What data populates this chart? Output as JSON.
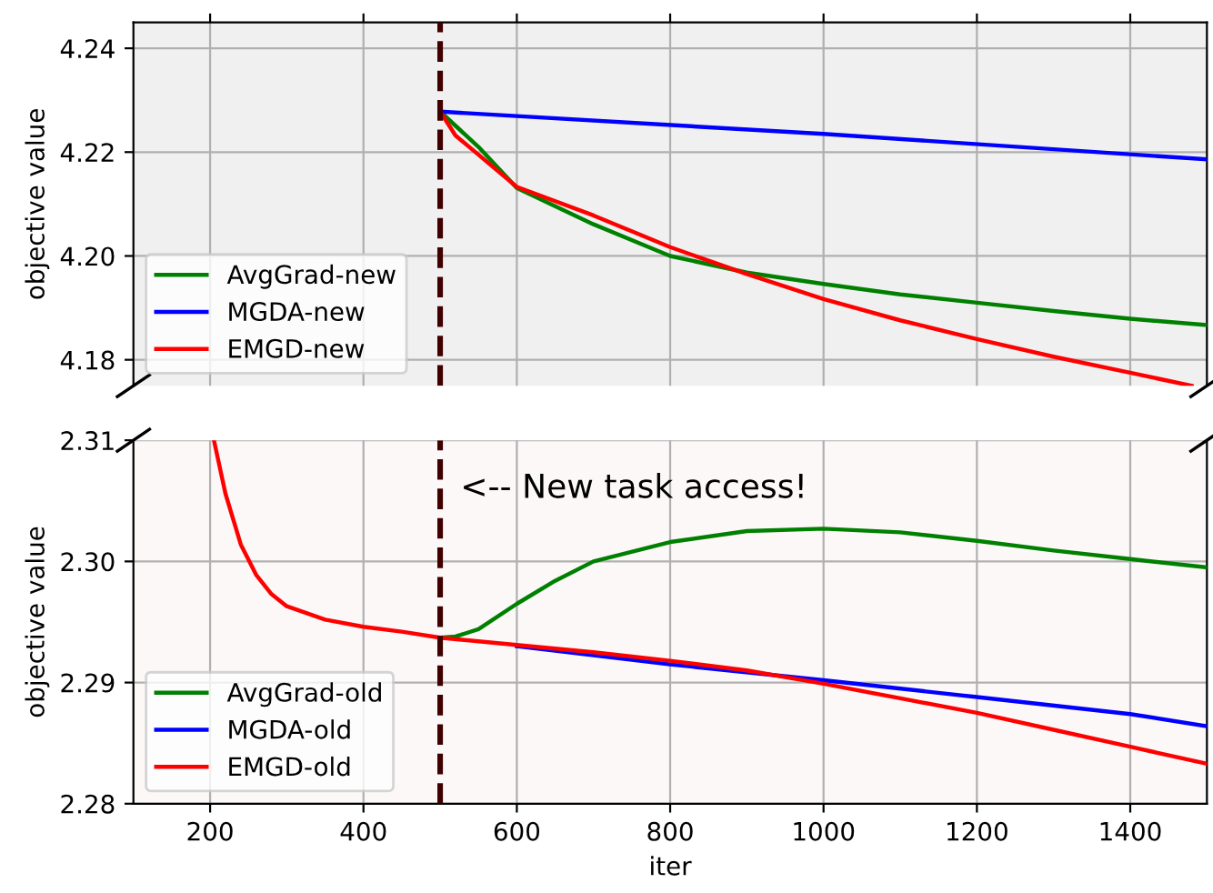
{
  "chart_data": [
    {
      "type": "line",
      "ylabel": "objective value",
      "xlim": [
        100,
        1500
      ],
      "ylim": [
        4.175,
        4.245
      ],
      "xticks": [
        {
          "value": 200,
          "label": null
        },
        {
          "value": 400,
          "label": null
        },
        {
          "value": 600,
          "label": null
        },
        {
          "value": 800,
          "label": null
        },
        {
          "value": 1000,
          "label": null
        },
        {
          "value": 1200,
          "label": null
        },
        {
          "value": 1400,
          "label": null
        }
      ],
      "yticks": [
        {
          "value": 4.18,
          "label": "4.18"
        },
        {
          "value": 4.2,
          "label": "4.20"
        },
        {
          "value": 4.22,
          "label": "4.22"
        },
        {
          "value": 4.24,
          "label": "4.24"
        }
      ],
      "tick_labels": "y",
      "grid": true,
      "legend": "bottom left",
      "line_style": "solid",
      "marker": "none",
      "ref_lines": [
        {
          "axis": "x",
          "value": 500,
          "color": "#400000",
          "line_style": "dashed"
        }
      ],
      "series": [
        {
          "name": "AvgGrad-new",
          "color": "#008000",
          "x": [
            500,
            550,
            600,
            700,
            800,
            900,
            1000,
            1100,
            1200,
            1300,
            1400,
            1500
          ],
          "values": [
            4.2278,
            4.221,
            4.2131,
            4.2061,
            4.2,
            4.1968,
            4.1946,
            4.1926,
            4.191,
            4.1894,
            4.1879,
            4.1867
          ]
        },
        {
          "name": "MGDA-new",
          "color": "#0000ff",
          "x": [
            500,
            1000,
            1500
          ],
          "values": [
            4.2278,
            4.2235,
            4.2186
          ]
        },
        {
          "name": "EMGD-new",
          "color": "#ff0000",
          "x": [
            500,
            520,
            550,
            600,
            700,
            800,
            900,
            1000,
            1100,
            1200,
            1300,
            1400,
            1480
          ],
          "values": [
            4.2278,
            4.2232,
            4.2195,
            4.2133,
            4.2078,
            4.2017,
            4.1965,
            4.1917,
            4.1876,
            4.184,
            4.1806,
            4.1775,
            4.175
          ]
        }
      ]
    },
    {
      "type": "line",
      "xlabel": "iter",
      "ylabel": "objective value",
      "xlim": [
        100,
        1500
      ],
      "ylim": [
        2.28,
        2.31
      ],
      "xticks": [
        200,
        400,
        600,
        800,
        1000,
        1200,
        1400
      ],
      "yticks": [
        {
          "value": 2.28,
          "label": "2.28"
        },
        {
          "value": 2.29,
          "label": "2.29"
        },
        {
          "value": 2.3,
          "label": "2.30"
        },
        {
          "value": 2.31,
          "label": "2.31"
        }
      ],
      "grid": true,
      "legend": "bottom left",
      "line_style": "solid",
      "marker": "none",
      "ref_lines": [
        {
          "axis": "x",
          "value": 500,
          "color": "#400000",
          "line_style": "dashed"
        }
      ],
      "annotations": [
        {
          "text": "<-- New task access!",
          "x": 500,
          "y": 2.306
        }
      ],
      "series": [
        {
          "name": "AvgGrad-old",
          "color": "#008000",
          "x": [
            500,
            520,
            550,
            600,
            650,
            700,
            800,
            900,
            1000,
            1100,
            1200,
            1300,
            1400,
            1500
          ],
          "values": [
            2.2937,
            2.2938,
            2.2944,
            2.2965,
            2.2984,
            2.3,
            2.3016,
            2.3025,
            2.3027,
            2.3024,
            2.3017,
            2.3009,
            2.3002,
            2.2995
          ]
        },
        {
          "name": "MGDA-old",
          "color": "#0000ff",
          "x": [
            600,
            800,
            1000,
            1200,
            1400,
            1500
          ],
          "values": [
            2.293,
            2.2915,
            2.2902,
            2.2888,
            2.2874,
            2.2864
          ]
        },
        {
          "name": "EMGD-old",
          "color": "#ff0000",
          "x": [
            205,
            220,
            240,
            260,
            280,
            300,
            350,
            400,
            450,
            500,
            600,
            700,
            800,
            900,
            1000,
            1100,
            1200,
            1300,
            1400,
            1500
          ],
          "values": [
            2.31,
            2.3056,
            2.3014,
            2.2989,
            2.2973,
            2.2963,
            2.2952,
            2.2946,
            2.2942,
            2.2937,
            2.2931,
            2.2925,
            2.2918,
            2.291,
            2.2899,
            2.2887,
            2.2875,
            2.2861,
            2.2847,
            2.2833
          ]
        }
      ]
    }
  ]
}
